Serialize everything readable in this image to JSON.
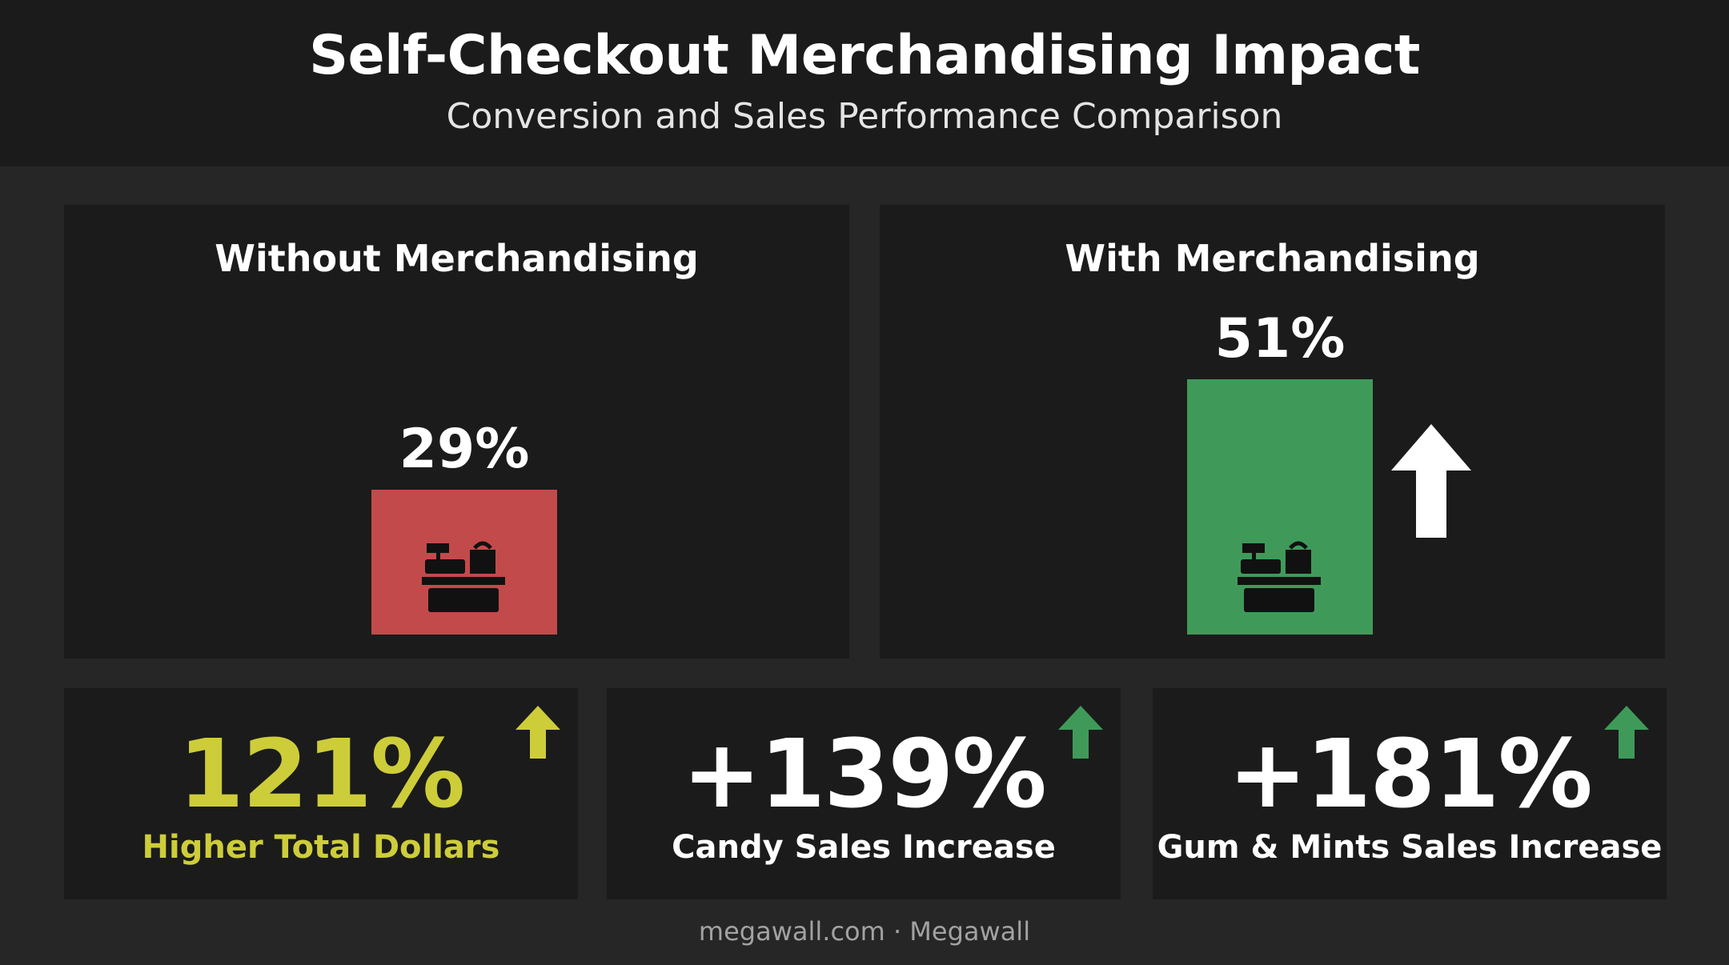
{
  "title": "Self-Checkout Merchandising Impact",
  "subtitle": "Conversion and Sales Performance Comparison",
  "colors": {
    "background": "#262626",
    "panel": "#1b1b1b",
    "red_bar": "#c34a4a",
    "green_bar": "#3f9a5a",
    "yellow_accent": "#cdcd3a",
    "arrow_green": "#3f9a5a",
    "arrow_white": "#ffffff"
  },
  "chart_data": {
    "type": "bar",
    "categories": [
      "Without Merchandising",
      "With Merchandising"
    ],
    "values": [
      29,
      51
    ],
    "value_labels": [
      "29%",
      "51%"
    ],
    "unit": "%",
    "icon": "cash-register-icon",
    "annotation": "up-arrow-icon"
  },
  "metrics": [
    {
      "value": "121%",
      "label": "Higher Total Dollars",
      "color": "#cdcd3a",
      "arrow_color": "#cdcd3a",
      "icon": "up-arrow-icon"
    },
    {
      "value": "+139%",
      "label": "Candy Sales Increase",
      "color": "#ffffff",
      "arrow_color": "#3f9a5a",
      "icon": "up-arrow-icon"
    },
    {
      "value": "+181%",
      "label": "Gum & Mints Sales Increase",
      "color": "#ffffff",
      "arrow_color": "#3f9a5a",
      "icon": "up-arrow-icon"
    }
  ],
  "footer": "megawall.com · Megawall"
}
